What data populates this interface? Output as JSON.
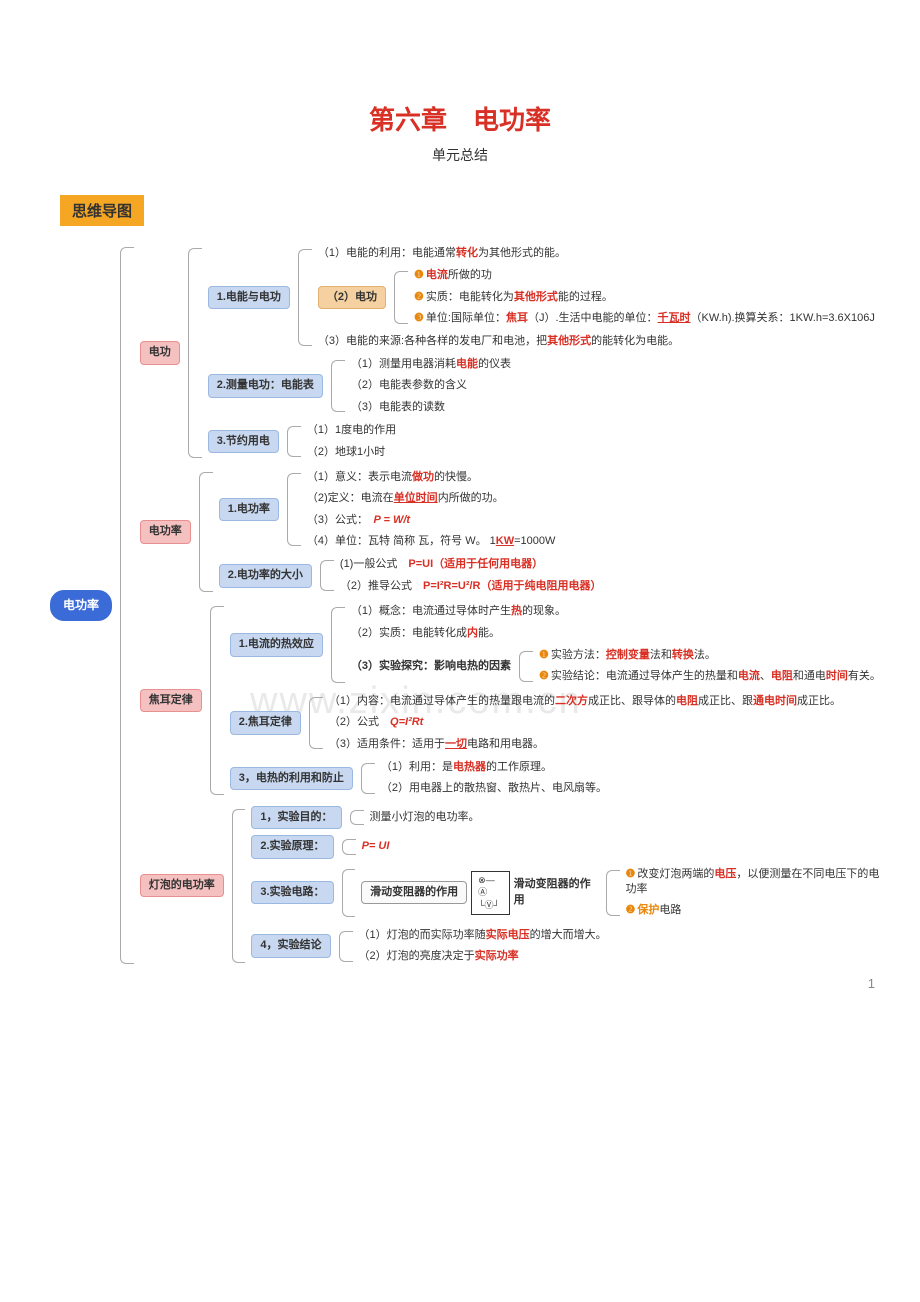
{
  "page": {
    "title": "第六章　电功率",
    "subtitle": "单元总结",
    "section_badge": "思维导图",
    "watermark": "www.zixin.com.cn",
    "page_number": "1"
  },
  "colors": {
    "title_red": "#d93025",
    "badge_bg": "#f5a623",
    "root_bg": "#3b6bd6",
    "pink_bg": "#f5c0c0",
    "blue_bg": "#c8d8f0",
    "orange_bg": "#f5d0a0",
    "highlight_red": "#d93025",
    "highlight_orange": "#e8870c",
    "watermark": "#e9e9e9",
    "border": "#aaa"
  },
  "mindmap": {
    "root": "电功率",
    "branches": [
      {
        "label": "电功",
        "style": "pink",
        "children": [
          {
            "label": "1.电能与电功",
            "style": "blue",
            "children": [
              {
                "text_parts": [
                  {
                    "t": "（1）电能的利用：电能通常"
                  },
                  {
                    "t": "转化",
                    "cls": "hl-red"
                  },
                  {
                    "t": "为其他形式的能。"
                  }
                ]
              },
              {
                "label": "（2）电功",
                "style": "orange",
                "children": [
                  {
                    "text_parts": [
                      {
                        "t": "❶",
                        "cls": "bullet-o"
                      },
                      {
                        "t": "电流",
                        "cls": "hl-red"
                      },
                      {
                        "t": "所做的功"
                      }
                    ]
                  },
                  {
                    "text_parts": [
                      {
                        "t": "❷",
                        "cls": "bullet-o"
                      },
                      {
                        "t": "实质：电能转化为"
                      },
                      {
                        "t": "其他形式",
                        "cls": "hl-red"
                      },
                      {
                        "t": "能的过程。"
                      }
                    ]
                  },
                  {
                    "text_parts": [
                      {
                        "t": "❸",
                        "cls": "bullet-o"
                      },
                      {
                        "t": "单位:国际单位："
                      },
                      {
                        "t": "焦耳",
                        "cls": "hl-red"
                      },
                      {
                        "t": "（J）.生活中电能的单位："
                      },
                      {
                        "t": "千瓦时",
                        "cls": "hl-red-u"
                      },
                      {
                        "t": "（KW.h).换算关系：1KW.h=3.6X106J"
                      }
                    ]
                  }
                ]
              },
              {
                "text_parts": [
                  {
                    "t": "（3）电能的来源:各种各样的发电厂和电池，把"
                  },
                  {
                    "t": "其他形式",
                    "cls": "hl-red"
                  },
                  {
                    "t": "的能转化为电能。"
                  }
                ]
              }
            ]
          },
          {
            "label": "2.测量电功：电能表",
            "style": "blue",
            "children": [
              {
                "text_parts": [
                  {
                    "t": "（1）测量用电器消耗"
                  },
                  {
                    "t": "电能",
                    "cls": "hl-red"
                  },
                  {
                    "t": "的仪表"
                  }
                ]
              },
              {
                "text_parts": [
                  {
                    "t": "（2）电能表参数的含义"
                  }
                ]
              },
              {
                "text_parts": [
                  {
                    "t": "（3）电能表的读数"
                  }
                ]
              }
            ]
          },
          {
            "label": "3.节约用电",
            "style": "blue",
            "children": [
              {
                "text_parts": [
                  {
                    "t": "（1）1度电的作用"
                  }
                ]
              },
              {
                "text_parts": [
                  {
                    "t": "（2）地球1小时"
                  }
                ]
              }
            ]
          }
        ]
      },
      {
        "label": "电功率",
        "style": "pink",
        "children": [
          {
            "label": "1.电功率",
            "style": "blue",
            "children": [
              {
                "text_parts": [
                  {
                    "t": "（1）意义：表示电流"
                  },
                  {
                    "t": "做功",
                    "cls": "hl-red"
                  },
                  {
                    "t": "的快慢。"
                  }
                ]
              },
              {
                "text_parts": [
                  {
                    "t": "（2)定义：电流在"
                  },
                  {
                    "t": "单位时间",
                    "cls": "hl-red-u"
                  },
                  {
                    "t": "内所做的功。"
                  }
                ]
              },
              {
                "text_parts": [
                  {
                    "t": "（3）公式：　"
                  },
                  {
                    "t": "P = W/t",
                    "cls": "hl-red",
                    "style": "font-style:italic"
                  }
                ]
              },
              {
                "text_parts": [
                  {
                    "t": "（4）单位：瓦特 简称 瓦，符号 W。 1"
                  },
                  {
                    "t": "KW",
                    "cls": "hl-red-u"
                  },
                  {
                    "t": "=1000W"
                  }
                ]
              }
            ]
          },
          {
            "label": "2.电功率的大小",
            "style": "blue",
            "children": [
              {
                "text_parts": [
                  {
                    "t": "(1)一般公式　"
                  },
                  {
                    "t": "P=UI（适用于任何用电器）",
                    "cls": "hl-red"
                  }
                ]
              },
              {
                "text_parts": [
                  {
                    "t": "（2）推导公式　"
                  },
                  {
                    "t": "P=I²R=U²/R（适用于纯电阻用电器）",
                    "cls": "hl-red"
                  }
                ]
              }
            ]
          }
        ]
      },
      {
        "label": "焦耳定律",
        "style": "pink",
        "children": [
          {
            "label": "1.电流的热效应",
            "style": "blue",
            "children": [
              {
                "text_parts": [
                  {
                    "t": "（1）概念：电流通过导体时产生"
                  },
                  {
                    "t": "热",
                    "cls": "hl-red"
                  },
                  {
                    "t": "的现象。"
                  }
                ]
              },
              {
                "text_parts": [
                  {
                    "t": "（2）实质：电能转化成"
                  },
                  {
                    "t": "内",
                    "cls": "hl-red"
                  },
                  {
                    "t": "能。"
                  }
                ]
              },
              {
                "label": "（3）实验探究：影响电热的因素",
                "plain": true,
                "children": [
                  {
                    "text_parts": [
                      {
                        "t": "❶",
                        "cls": "bullet-o"
                      },
                      {
                        "t": "实验方法："
                      },
                      {
                        "t": "控制变量",
                        "cls": "hl-red"
                      },
                      {
                        "t": "法和"
                      },
                      {
                        "t": "转换",
                        "cls": "hl-red"
                      },
                      {
                        "t": "法。"
                      }
                    ]
                  },
                  {
                    "text_parts": [
                      {
                        "t": "❷",
                        "cls": "bullet-o"
                      },
                      {
                        "t": "实验结论：电流通过导体产生的热量和"
                      },
                      {
                        "t": "电流",
                        "cls": "hl-red"
                      },
                      {
                        "t": "、"
                      },
                      {
                        "t": "电阻",
                        "cls": "hl-red"
                      },
                      {
                        "t": "和通电"
                      },
                      {
                        "t": "时间",
                        "cls": "hl-red"
                      },
                      {
                        "t": "有关。"
                      }
                    ]
                  }
                ]
              }
            ]
          },
          {
            "label": "2.焦耳定律",
            "style": "blue",
            "children": [
              {
                "text_parts": [
                  {
                    "t": "（1）内容：电流通过导体产生的热量跟电流的"
                  },
                  {
                    "t": "二次方",
                    "cls": "hl-red"
                  },
                  {
                    "t": "成正比、跟导体的"
                  },
                  {
                    "t": "电阻",
                    "cls": "hl-red"
                  },
                  {
                    "t": "成正比、跟"
                  },
                  {
                    "t": "通电时间",
                    "cls": "hl-red"
                  },
                  {
                    "t": "成正比。"
                  }
                ]
              },
              {
                "text_parts": [
                  {
                    "t": "（2）公式　"
                  },
                  {
                    "t": "Q=I²Rt",
                    "cls": "hl-red",
                    "style": "font-style:italic"
                  }
                ]
              },
              {
                "text_parts": [
                  {
                    "t": "（3）适用条件：适用于"
                  },
                  {
                    "t": "一切",
                    "cls": "hl-red-u"
                  },
                  {
                    "t": "电路和用电器。"
                  }
                ]
              }
            ]
          },
          {
            "label": "3，电热的利用和防止",
            "style": "blue",
            "children": [
              {
                "text_parts": [
                  {
                    "t": "（1）利用：是"
                  },
                  {
                    "t": "电热器",
                    "cls": "hl-red"
                  },
                  {
                    "t": "的工作原理。"
                  }
                ]
              },
              {
                "text_parts": [
                  {
                    "t": "（2）用电器上的散热窗、散热片、电风扇等。"
                  }
                ]
              }
            ]
          }
        ]
      },
      {
        "label": "灯泡的电功率",
        "style": "pink",
        "children": [
          {
            "label": "1，实验目的：",
            "style": "blue",
            "children": [
              {
                "text_parts": [
                  {
                    "t": "测量小灯泡的电功率。"
                  }
                ]
              }
            ]
          },
          {
            "label": "2.实验原理：",
            "style": "blue",
            "children": [
              {
                "text_parts": [
                  {
                    "t": "P= UI",
                    "cls": "hl-red",
                    "style": "font-style:italic"
                  }
                ]
              }
            ]
          },
          {
            "label": "3.实验电路：",
            "style": "blue",
            "children": [
              {
                "circuit": true,
                "label": "滑动变阻器的作用",
                "children": [
                  {
                    "text_parts": [
                      {
                        "t": "❶",
                        "cls": "bullet-o"
                      },
                      {
                        "t": "改变灯泡两端的"
                      },
                      {
                        "t": "电压",
                        "cls": "hl-red"
                      },
                      {
                        "t": "，以便测量在不同电压下的电功率"
                      }
                    ]
                  },
                  {
                    "text_parts": [
                      {
                        "t": "❷",
                        "cls": "bullet-o"
                      },
                      {
                        "t": "保护",
                        "cls": "hl-orange"
                      },
                      {
                        "t": "电路"
                      }
                    ]
                  }
                ]
              }
            ]
          },
          {
            "label": "4，实验结论",
            "style": "blue",
            "children": [
              {
                "text_parts": [
                  {
                    "t": "（1）灯泡的而实际功率随"
                  },
                  {
                    "t": "实际电压",
                    "cls": "hl-red"
                  },
                  {
                    "t": "的增大而增大。"
                  }
                ]
              },
              {
                "text_parts": [
                  {
                    "t": "（2）灯泡的亮度决定于"
                  },
                  {
                    "t": "实际功率",
                    "cls": "hl-red"
                  }
                ]
              }
            ]
          }
        ]
      }
    ]
  }
}
